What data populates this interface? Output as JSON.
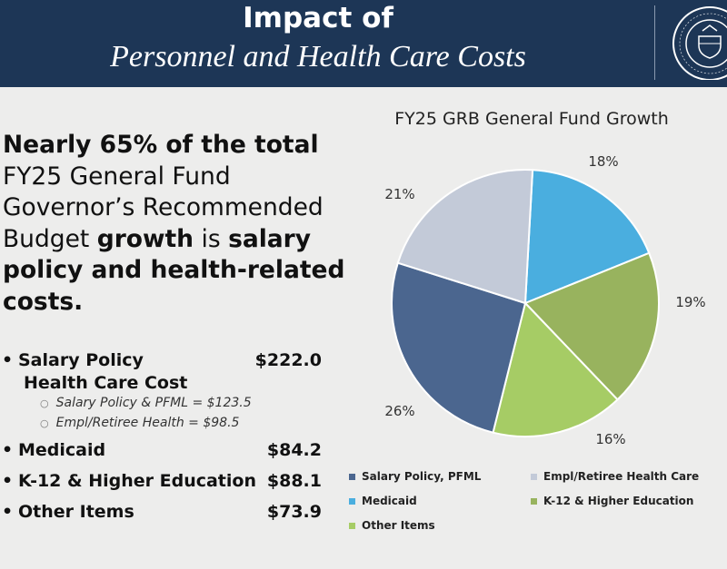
{
  "header": {
    "title_line1": "Impact of",
    "title_line2": "Personnel and Health Care Costs",
    "seal_icon": "delaware-state-seal"
  },
  "headline": {
    "part1": "Nearly 65% of the total",
    "part2": "FY25 General Fund Governor’s Recommended Budget",
    "part3": "growth",
    "part4": "is",
    "part5": "salary policy and health-related costs."
  },
  "items": [
    {
      "label": "Salary Policy",
      "amount": "$222.0"
    },
    {
      "label": "Health Care Cost",
      "amount": ""
    },
    {
      "label": "Medicaid",
      "amount": "$84.2"
    },
    {
      "label": "K-12 & Higher Education",
      "amount": "$88.1"
    },
    {
      "label": "Other Items",
      "amount": "$73.9"
    }
  ],
  "subitems": [
    {
      "text": "Salary Policy & PFML  =  $123.5"
    },
    {
      "text": "Empl/Retiree Health  =  $98.5"
    }
  ],
  "chart_data": {
    "type": "pie",
    "title": "FY25 GRB General Fund Growth",
    "slices": [
      {
        "name": "Medicaid",
        "value": 18,
        "label": "18%",
        "color": "#4aaedf"
      },
      {
        "name": "K-12 & Higher Education",
        "value": 19,
        "label": "19%",
        "color": "#98b35e"
      },
      {
        "name": "Other Items",
        "value": 16,
        "label": "16%",
        "color": "#a6cc65"
      },
      {
        "name": "Salary Policy, PFML",
        "value": 26,
        "label": "26%",
        "color": "#4b668f"
      },
      {
        "name": "Empl/Retiree Health Care",
        "value": 21,
        "label": "21%",
        "color": "#c3cad8"
      }
    ],
    "legend": [
      {
        "name": "Salary Policy, PFML",
        "color": "#4b668f"
      },
      {
        "name": "Empl/Retiree Health Care",
        "color": "#c3cad8"
      },
      {
        "name": "Medicaid",
        "color": "#4aaedf"
      },
      {
        "name": "K-12 & Higher Education",
        "color": "#98b35e"
      },
      {
        "name": "Other Items",
        "color": "#a6cc65"
      }
    ],
    "legend_position": "bottom"
  }
}
